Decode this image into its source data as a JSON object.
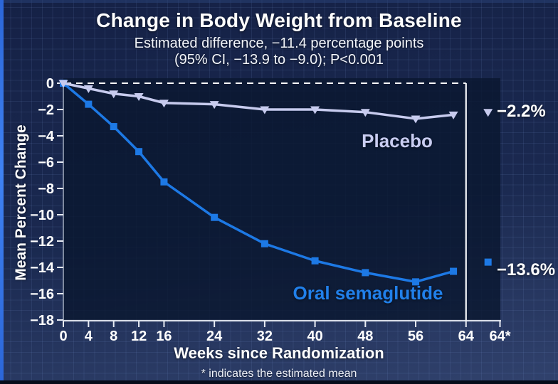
{
  "header": {
    "title": "Change in Body Weight from Baseline",
    "subtitle_line1": "Estimated difference, −11.4 percentage points",
    "subtitle_line2": "(95% CI, −13.9 to −9.0); P<0.001"
  },
  "footnote": "* indicates the estimated mean",
  "colors": {
    "background": "#1a2950",
    "plot_background": "#0c1a33",
    "left_border_accent": "#3273e8",
    "placebo_series": "#c7cbee",
    "semaglutide_series": "#1d79e5",
    "axis_line": "#d7dce6",
    "zero_dashed_line": "#ffffff",
    "week64_divider": "#f5f7fa"
  },
  "chart_data": {
    "type": "line",
    "title": "Change in Body Weight from Baseline",
    "xlabel": "Weeks since Randomization",
    "ylabel": "Mean Percent Change",
    "xlim": [
      0,
      70
    ],
    "ylim": [
      -18,
      0.5
    ],
    "grid": "subtle background grid, dashed reference line at y=0, white divider line at week 64",
    "legend_position": "labels inline next to lines",
    "x_ticks": [
      {
        "label": "0",
        "w": 0
      },
      {
        "label": "4",
        "w": 4
      },
      {
        "label": "8",
        "w": 8
      },
      {
        "label": "12",
        "w": 12
      },
      {
        "label": "16",
        "w": 16
      },
      {
        "label": "24",
        "w": 24
      },
      {
        "label": "32",
        "w": 32
      },
      {
        "label": "40",
        "w": 40
      },
      {
        "label": "48",
        "w": 48
      },
      {
        "label": "56",
        "w": 56
      },
      {
        "label": "64",
        "w": 64
      },
      {
        "label": "64*",
        "w": 69.4
      }
    ],
    "y_ticks": [
      {
        "label": "0",
        "v": 0
      },
      {
        "label": "−2",
        "v": -2
      },
      {
        "label": "−4",
        "v": -4
      },
      {
        "label": "−6",
        "v": -6
      },
      {
        "label": "−8",
        "v": -8
      },
      {
        "label": "−10",
        "v": -10
      },
      {
        "label": "−12",
        "v": -12
      },
      {
        "label": "−14",
        "v": -14
      },
      {
        "label": "−16",
        "v": -16
      },
      {
        "label": "−18",
        "v": -18
      }
    ],
    "divider_week": 64,
    "estimated_mean_week": 67.5,
    "series": [
      {
        "name": "Oral semaglutide",
        "color": "#1d79e5",
        "marker": "square",
        "x": [
          0,
          4,
          8,
          12,
          16,
          24,
          32,
          40,
          48,
          56,
          62
        ],
        "y": [
          0,
          -1.6,
          -3.3,
          -5.2,
          -7.5,
          -10.2,
          -12.2,
          -13.5,
          -14.4,
          -15.1,
          -14.3
        ],
        "estimated_mean": -13.6,
        "estimated_mean_label": "−13.6%"
      },
      {
        "name": "Placebo",
        "color": "#c7cbee",
        "marker": "triangle-down",
        "x": [
          0,
          4,
          8,
          12,
          16,
          24,
          32,
          40,
          48,
          56,
          62
        ],
        "y": [
          0,
          -0.4,
          -0.8,
          -1.0,
          -1.5,
          -1.6,
          -2.0,
          -2.0,
          -2.2,
          -2.7,
          -2.4
        ],
        "estimated_mean": -2.2,
        "estimated_mean_label": "−2.2%"
      }
    ]
  }
}
